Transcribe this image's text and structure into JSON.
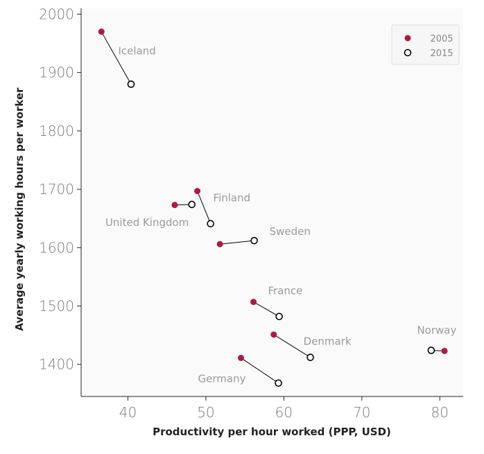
{
  "chart_data": {
    "type": "scatter",
    "xlabel": "Productivity per hour worked (PPP, USD)",
    "ylabel": "Average yearly working hours per worker",
    "xlim": [
      34,
      83
    ],
    "ylim": [
      1345,
      2010
    ],
    "xticks": [
      40,
      50,
      60,
      70,
      80
    ],
    "yticks": [
      1400,
      1500,
      1600,
      1700,
      1800,
      1900,
      2000
    ],
    "grid": false,
    "legend_position": "top-right",
    "series": [
      {
        "name": "2005",
        "color": "#b5173f",
        "marker": "filled-circle"
      },
      {
        "name": "2015",
        "color": "#000000",
        "marker": "hollow-circle"
      }
    ],
    "countries": [
      {
        "name": "Iceland",
        "x2005": 36.6,
        "y2005": 1970,
        "x2015": 40.4,
        "y2015": 1880
      },
      {
        "name": "Finland",
        "x2005": 48.9,
        "y2005": 1697,
        "x2015": 50.6,
        "y2015": 1641
      },
      {
        "name": "United Kingdom",
        "x2005": 46.0,
        "y2005": 1673,
        "x2015": 48.2,
        "y2015": 1674
      },
      {
        "name": "Sweden",
        "x2005": 51.8,
        "y2005": 1606,
        "x2015": 56.2,
        "y2015": 1612
      },
      {
        "name": "France",
        "x2005": 56.1,
        "y2005": 1507,
        "x2015": 59.4,
        "y2015": 1482
      },
      {
        "name": "Denmark",
        "x2005": 58.7,
        "y2005": 1451,
        "x2015": 63.4,
        "y2015": 1412
      },
      {
        "name": "Germany",
        "x2005": 54.5,
        "y2005": 1411,
        "x2015": 59.3,
        "y2015": 1368
      },
      {
        "name": "Norway",
        "x2005": 80.6,
        "y2005": 1423,
        "x2015": 78.9,
        "y2015": 1424
      }
    ]
  }
}
